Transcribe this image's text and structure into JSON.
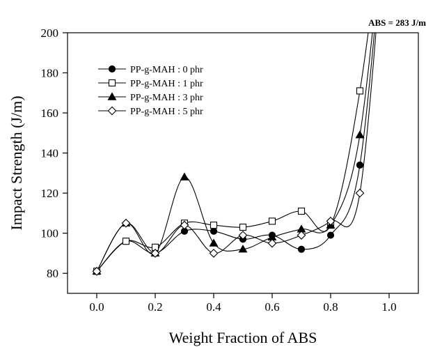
{
  "chart_data": {
    "type": "line",
    "xlabel": "Weight Fraction of ABS",
    "ylabel": "Impact Strength (J/m)",
    "annotation": "ABS = 283 J/m",
    "xlim": [
      -0.1,
      1.1
    ],
    "ylim": [
      70,
      200
    ],
    "xticks": [
      "0.0",
      "0.2",
      "0.4",
      "0.6",
      "0.8",
      "1.0"
    ],
    "yticks": [
      "80",
      "100",
      "120",
      "140",
      "160",
      "180",
      "200"
    ],
    "grid": false,
    "legend_position": "upper-left",
    "x": [
      0.0,
      0.1,
      0.2,
      0.3,
      0.4,
      0.5,
      0.6,
      0.7,
      0.8,
      0.9,
      1.0
    ],
    "series": [
      {
        "name": "PP-g-MAH : 0 phr",
        "marker": "filled-circle",
        "values": [
          81,
          96,
          90,
          101,
          101,
          97,
          99,
          92,
          99,
          134,
          283
        ]
      },
      {
        "name": "PP-g-MAH : 1 phr",
        "marker": "open-square",
        "values": [
          81,
          96,
          93,
          105,
          104,
          103,
          106,
          111,
          104,
          171,
          283
        ]
      },
      {
        "name": "PP-g-MAH : 3 phr",
        "marker": "filled-triangle",
        "values": [
          81,
          105,
          90,
          128,
          95,
          92,
          98,
          102,
          104,
          149,
          283
        ]
      },
      {
        "name": "PP-g-MAH : 5 phr",
        "marker": "open-diamond",
        "values": [
          81,
          105,
          90,
          104,
          90,
          99,
          95,
          99,
          106,
          120,
          283
        ]
      }
    ]
  }
}
